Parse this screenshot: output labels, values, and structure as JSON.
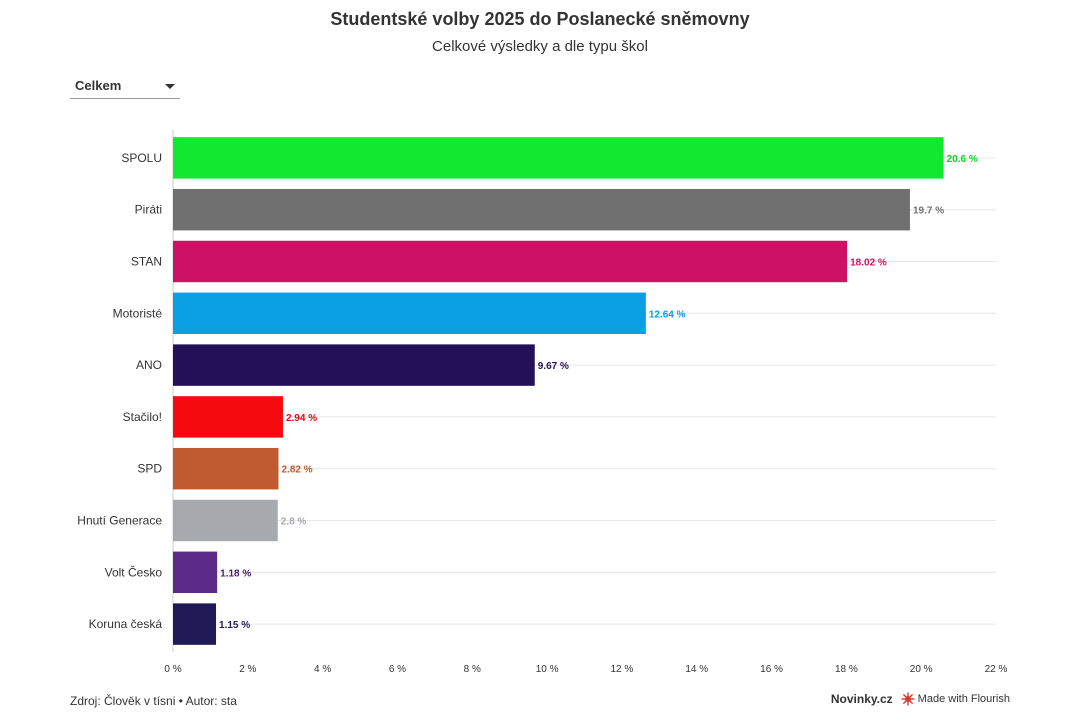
{
  "header": {
    "title": "Studentské volby 2025 do Poslanecké sněmovny",
    "subtitle": "Celkové výsledky a dle typu škol"
  },
  "filter": {
    "selected": "Celkem"
  },
  "chart_data": {
    "type": "bar",
    "orientation": "horizontal",
    "categories": [
      "SPOLU",
      "Piráti",
      "STAN",
      "Motoristé",
      "ANO",
      "Stačilo!",
      "SPD",
      "Hnutí Generace",
      "Volt Česko",
      "Koruna česká"
    ],
    "values": [
      20.6,
      19.7,
      18.02,
      12.64,
      9.67,
      2.94,
      2.82,
      2.8,
      1.18,
      1.15
    ],
    "value_labels": [
      "20.6 %",
      "19.7 %",
      "18.02 %",
      "12.64 %",
      "9.67 %",
      "2.94 %",
      "2.82 %",
      "2.8 %",
      "1.18 %",
      "1.15 %"
    ],
    "colors": [
      "#12e82e",
      "#707070",
      "#cc1166",
      "#0b9fe3",
      "#231058",
      "#f50a0f",
      "#c05a2f",
      "#a6a9ad",
      "#5a2a86",
      "#1f1a55"
    ],
    "label_colors": [
      "#12d22a",
      "#707070",
      "#cc1166",
      "#0b9fe3",
      "#231058",
      "#e8090e",
      "#c05a2f",
      "#a6a9ad",
      "#4a2070",
      "#1f1a55"
    ],
    "xlim": [
      0,
      22
    ],
    "x_ticks": [
      0,
      2,
      4,
      6,
      8,
      10,
      12,
      14,
      16,
      18,
      20,
      22
    ],
    "x_tick_labels": [
      "0 %",
      "2 %",
      "4 %",
      "6 %",
      "8 %",
      "10 %",
      "12 %",
      "14 %",
      "16 %",
      "18 %",
      "20 %",
      "22 %"
    ],
    "grid": true
  },
  "footer": {
    "source": "Zdroj: Člověk v tísni • Autor: sta",
    "brand": "Novinky.cz",
    "made_with": "Made with Flourish",
    "made_with_icon": "flourish-icon"
  }
}
